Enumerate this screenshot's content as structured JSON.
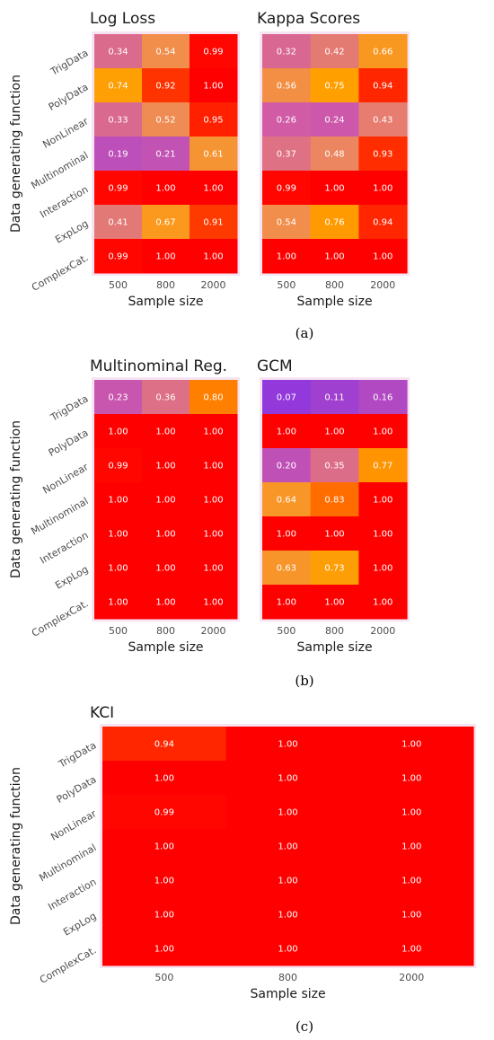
{
  "figure": {
    "caption_a": "(a)",
    "caption_b": "(b)",
    "caption_c": "(c)"
  },
  "chart_data": [
    {
      "type": "heatmap",
      "title": "Log Loss",
      "xlabel": "Sample size",
      "ylabel": "Data generating function",
      "x": [
        "500",
        "800",
        "2000"
      ],
      "y": [
        "TrigData",
        "PolyData",
        "NonLinear",
        "Multinominal",
        "Interaction",
        "ExpLog",
        "ComplexCat."
      ],
      "values": [
        [
          0.34,
          0.54,
          0.99
        ],
        [
          0.74,
          0.92,
          1.0
        ],
        [
          0.33,
          0.52,
          0.95
        ],
        [
          0.19,
          0.21,
          0.61
        ],
        [
          0.99,
          1.0,
          1.0
        ],
        [
          0.41,
          0.67,
          0.91
        ],
        [
          0.99,
          1.0,
          1.0
        ]
      ],
      "colors": [
        "#7b2cf0",
        "#d05aa8",
        "#ee8a5a",
        "#ffa000",
        "#ff0000"
      ]
    },
    {
      "type": "heatmap",
      "title": "Kappa Scores",
      "xlabel": "Sample size",
      "ylabel": "",
      "x": [
        "500",
        "800",
        "2000"
      ],
      "y": [
        "TrigData",
        "PolyData",
        "NonLinear",
        "Multinominal",
        "Interaction",
        "ExpLog",
        "ComplexCat."
      ],
      "values": [
        [
          0.32,
          0.42,
          0.66
        ],
        [
          0.56,
          0.75,
          0.94
        ],
        [
          0.26,
          0.24,
          0.43
        ],
        [
          0.37,
          0.48,
          0.93
        ],
        [
          0.99,
          1.0,
          1.0
        ],
        [
          0.54,
          0.76,
          0.94
        ],
        [
          1.0,
          1.0,
          1.0
        ]
      ],
      "colors": [
        "#7b2cf0",
        "#d05aa8",
        "#ee8a5a",
        "#ffa000",
        "#ff0000"
      ]
    },
    {
      "type": "heatmap",
      "title": "Multinominal Reg.",
      "xlabel": "Sample size",
      "ylabel": "Data generating function",
      "x": [
        "500",
        "800",
        "2000"
      ],
      "y": [
        "TrigData",
        "PolyData",
        "NonLinear",
        "Multinominal",
        "Interaction",
        "ExpLog",
        "ComplexCat."
      ],
      "values": [
        [
          0.23,
          0.36,
          0.8
        ],
        [
          1.0,
          1.0,
          1.0
        ],
        [
          0.99,
          1.0,
          1.0
        ],
        [
          1.0,
          1.0,
          1.0
        ],
        [
          1.0,
          1.0,
          1.0
        ],
        [
          1.0,
          1.0,
          1.0
        ],
        [
          1.0,
          1.0,
          1.0
        ]
      ],
      "colors": [
        "#7b2cf0",
        "#d05aa8",
        "#ee8a5a",
        "#ffa000",
        "#ff0000"
      ]
    },
    {
      "type": "heatmap",
      "title": "GCM",
      "xlabel": "Sample size",
      "ylabel": "",
      "x": [
        "500",
        "800",
        "2000"
      ],
      "y": [
        "TrigData",
        "PolyData",
        "NonLinear",
        "Multinominal",
        "Interaction",
        "ExpLog",
        "ComplexCat."
      ],
      "values": [
        [
          0.07,
          0.11,
          0.16
        ],
        [
          1.0,
          1.0,
          1.0
        ],
        [
          0.2,
          0.35,
          0.77
        ],
        [
          0.64,
          0.83,
          1.0
        ],
        [
          1.0,
          1.0,
          1.0
        ],
        [
          0.63,
          0.73,
          1.0
        ],
        [
          1.0,
          1.0,
          1.0
        ]
      ],
      "colors": [
        "#7b2cf0",
        "#d05aa8",
        "#ee8a5a",
        "#ffa000",
        "#ff0000"
      ]
    },
    {
      "type": "heatmap",
      "title": "KCI",
      "xlabel": "Sample size",
      "ylabel": "Data generating function",
      "x": [
        "500",
        "800",
        "2000"
      ],
      "y": [
        "TrigData",
        "PolyData",
        "NonLinear",
        "Multinominal",
        "Interaction",
        "ExpLog",
        "ComplexCat."
      ],
      "values": [
        [
          0.94,
          1.0,
          1.0
        ],
        [
          1.0,
          1.0,
          1.0
        ],
        [
          0.99,
          1.0,
          1.0
        ],
        [
          1.0,
          1.0,
          1.0
        ],
        [
          1.0,
          1.0,
          1.0
        ],
        [
          1.0,
          1.0,
          1.0
        ],
        [
          1.0,
          1.0,
          1.0
        ]
      ],
      "colors": [
        "#7b2cf0",
        "#d05aa8",
        "#ee8a5a",
        "#ffa000",
        "#ff0000"
      ]
    }
  ]
}
